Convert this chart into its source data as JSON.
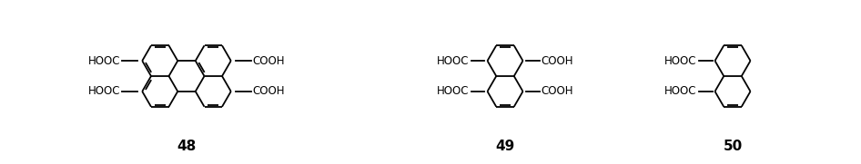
{
  "figsize": [
    9.46,
    1.81
  ],
  "dpi": 100,
  "bg": "#ffffff",
  "lc": "#000000",
  "lw": 1.3,
  "dbo": 0.022,
  "fs_text": 8.5,
  "fs_label": 11,
  "label_48": "48",
  "label_49": "49",
  "label_50": "50",
  "R": 0.195
}
